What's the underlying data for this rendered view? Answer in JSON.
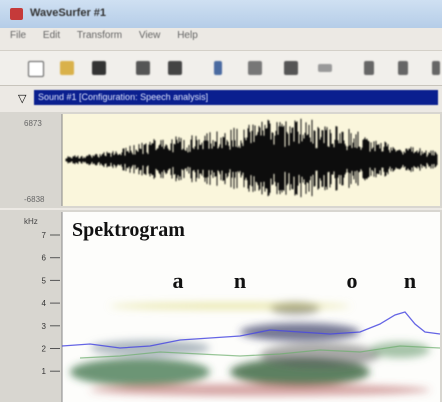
{
  "window": {
    "title": "WaveSurfer #1",
    "menu": [
      "File",
      "Edit",
      "Transform",
      "View",
      "Help"
    ]
  },
  "sound_selector": "Sound #1 [Configuration: Speech analysis]",
  "waveform": {
    "max_label": "6873",
    "min_label": "-6838"
  },
  "spectrogram": {
    "unit": "kHz",
    "ticks": [
      "7",
      "6",
      "5",
      "4",
      "3",
      "2",
      "1"
    ],
    "title": "Spektrogram",
    "phonemes": [
      "a",
      "n",
      "o",
      "n"
    ]
  }
}
